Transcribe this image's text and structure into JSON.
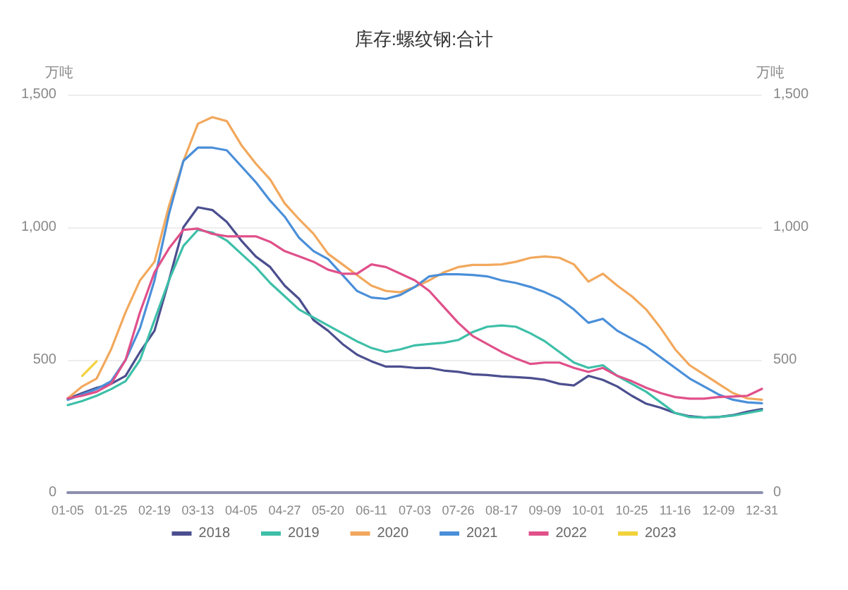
{
  "chart_data": {
    "type": "line",
    "title": "库存:螺纹钢:合计",
    "ylabel": "万吨",
    "y2label": "万吨",
    "categories": [
      "01-05",
      null,
      null,
      "01-25",
      null,
      null,
      "02-19",
      null,
      null,
      "03-13",
      null,
      null,
      "04-05",
      null,
      null,
      "04-27",
      null,
      null,
      "05-20",
      null,
      null,
      "06-11",
      null,
      null,
      "07-03",
      null,
      null,
      "07-26",
      null,
      null,
      "08-17",
      null,
      null,
      "09-09",
      null,
      null,
      "10-01",
      null,
      null,
      "10-25",
      null,
      null,
      "11-16",
      null,
      null,
      "12-09",
      null,
      null,
      "12-31"
    ],
    "ylim": [
      0,
      1500
    ],
    "yticks": [
      {
        "value": 0,
        "label": "0"
      },
      {
        "value": 500,
        "label": "500"
      },
      {
        "value": 1000,
        "label": "1,000"
      },
      {
        "value": 1500,
        "label": "1,500"
      }
    ],
    "y2lim": [
      0,
      1500
    ],
    "y2ticks": [
      {
        "value": 0,
        "label": "0"
      },
      {
        "value": 500,
        "label": "500"
      },
      {
        "value": 1000,
        "label": "1,000"
      },
      {
        "value": 1500,
        "label": "1,500"
      }
    ],
    "grid": "y",
    "legend": "bottom",
    "marker": "none",
    "line_style": "solid",
    "series": [
      {
        "name": "2018",
        "color": "#4b4f8f",
        "values": [
          354,
          375,
          395,
          410,
          440,
          530,
          610,
          800,
          1000,
          1075,
          1065,
          1020,
          950,
          890,
          850,
          780,
          730,
          650,
          610,
          560,
          520,
          495,
          475,
          475,
          470,
          470,
          460,
          455,
          446,
          443,
          438,
          435,
          432,
          425,
          410,
          404,
          440,
          425,
          400,
          365,
          335,
          320,
          300,
          288,
          283,
          285,
          292,
          305,
          315
        ]
      },
      {
        "name": "2019",
        "color": "#3dbfa8",
        "values": [
          330,
          345,
          365,
          390,
          420,
          500,
          650,
          800,
          930,
          990,
          980,
          950,
          900,
          850,
          790,
          740,
          690,
          660,
          630,
          600,
          570,
          545,
          530,
          540,
          555,
          560,
          565,
          575,
          605,
          625,
          630,
          625,
          600,
          570,
          530,
          490,
          470,
          480,
          440,
          410,
          380,
          340,
          300,
          285,
          283,
          285,
          290,
          300,
          310
        ]
      },
      {
        "name": "2020",
        "color": "#f2a85c",
        "values": [
          355,
          400,
          430,
          540,
          680,
          800,
          870,
          1080,
          1250,
          1390,
          1415,
          1400,
          1310,
          1240,
          1180,
          1090,
          1030,
          975,
          900,
          860,
          820,
          780,
          760,
          755,
          775,
          800,
          830,
          850,
          858,
          858,
          860,
          870,
          885,
          890,
          885,
          860,
          795,
          825,
          780,
          740,
          690,
          620,
          540,
          480,
          445,
          410,
          375,
          355,
          350
        ]
      },
      {
        "name": "2021",
        "color": "#4a8fd9",
        "values": [
          350,
          370,
          390,
          420,
          500,
          620,
          800,
          1050,
          1250,
          1300,
          1300,
          1290,
          1230,
          1170,
          1100,
          1040,
          960,
          910,
          880,
          820,
          760,
          735,
          730,
          745,
          775,
          815,
          823,
          823,
          820,
          815,
          800,
          790,
          775,
          755,
          730,
          690,
          640,
          655,
          610,
          580,
          550,
          510,
          470,
          430,
          400,
          370,
          350,
          340,
          337
        ]
      },
      {
        "name": "2022",
        "color": "#e0508a",
        "values": [
          355,
          365,
          380,
          410,
          500,
          680,
          830,
          920,
          990,
          995,
          975,
          966,
          966,
          966,
          945,
          910,
          890,
          870,
          840,
          825,
          825,
          860,
          850,
          825,
          800,
          760,
          700,
          640,
          590,
          560,
          530,
          505,
          485,
          490,
          490,
          470,
          455,
          470,
          440,
          420,
          395,
          375,
          360,
          354,
          354,
          360,
          362,
          365,
          391
        ]
      },
      {
        "name": "2023",
        "color": "#f2d23c",
        "values": [
          null,
          440,
          495,
          null,
          null,
          null,
          null,
          null,
          null,
          null,
          null,
          null,
          null,
          null,
          null,
          null,
          null,
          null,
          null,
          null,
          null,
          null,
          null,
          null,
          null,
          null,
          null,
          null,
          null,
          null,
          null,
          null,
          null,
          null,
          null,
          null,
          null,
          null,
          null,
          null,
          null,
          null,
          null,
          null,
          null,
          null,
          null,
          null,
          null
        ]
      }
    ]
  }
}
